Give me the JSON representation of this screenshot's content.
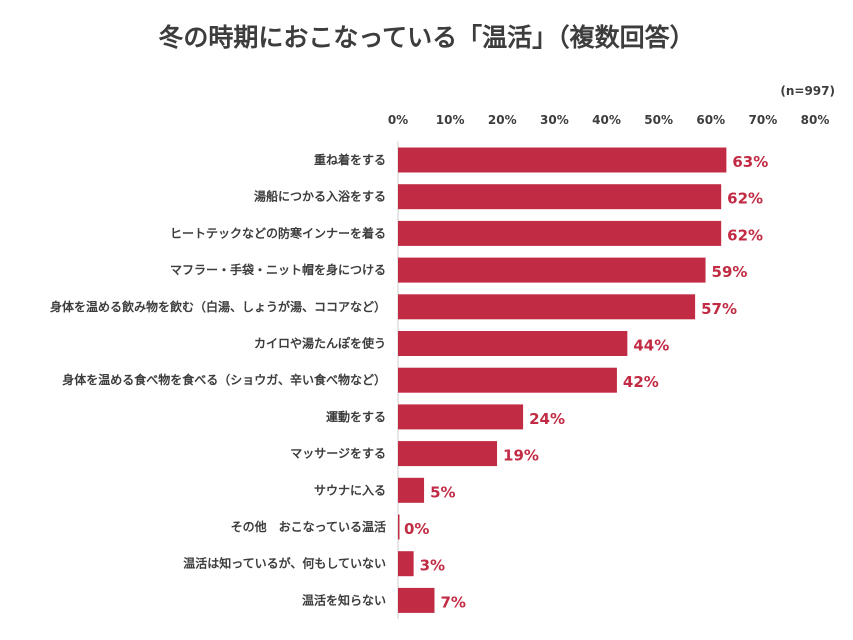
{
  "title": "冬の時期におこなっている「温活」（複数回答）",
  "sample_note": "(n=997)",
  "colors": {
    "bar": "#c12c44",
    "value_text": "#c12c44",
    "axis": "#cccccc"
  },
  "chart_data": {
    "type": "bar",
    "orientation": "horizontal",
    "title": "冬の時期におこなっている「温活」（複数回答）",
    "xlim": [
      0,
      80
    ],
    "ticks": [
      0,
      10,
      20,
      30,
      40,
      50,
      60,
      70,
      80
    ],
    "tick_labels": [
      "0%",
      "10%",
      "20%",
      "30%",
      "40%",
      "50%",
      "60%",
      "70%",
      "80%"
    ],
    "grid": false,
    "categories": [
      "重ね着をする",
      "湯船につかる入浴をする",
      "ヒートテックなどの防寒インナーを着る",
      "マフラー・手袋・ニット帽を身につける",
      "身体を温める飲み物を飲む（白湯、しょうが湯、ココアなど）",
      "カイロや湯たんぽを使う",
      "身体を温める食べ物を食べる（ショウガ、辛い食べ物など）",
      "運動をする",
      "マッサージをする",
      "サウナに入る",
      "その他　おこなっている温活",
      "温活は知っているが、何もしていない",
      "温活を知らない"
    ],
    "values": [
      63,
      62,
      62,
      59,
      57,
      44,
      42,
      24,
      19,
      5,
      0,
      3,
      7
    ],
    "value_labels": [
      "63%",
      "62%",
      "62%",
      "59%",
      "57%",
      "44%",
      "42%",
      "24%",
      "19%",
      "5%",
      "0%",
      "3%",
      "7%"
    ]
  }
}
